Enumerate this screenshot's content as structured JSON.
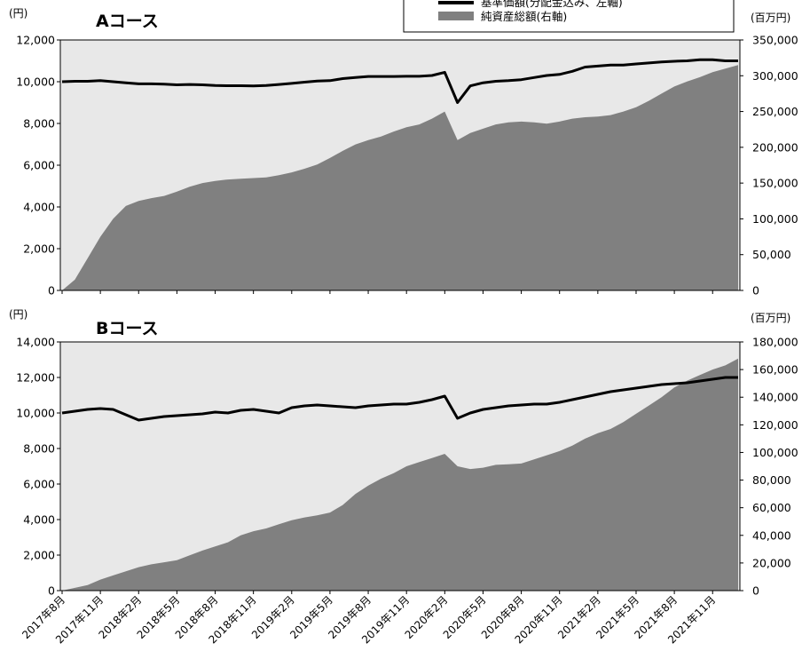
{
  "legend": {
    "nav_label": "基準価額(分配金込み、左軸)",
    "assets_label": "純資産総額(右軸)"
  },
  "colors": {
    "plot_background": "#e8e8e8",
    "assets_fill": "#808080",
    "nav_line": "#000000"
  },
  "x_ticks": [
    "2017年8月",
    "2017年11月",
    "2018年2月",
    "2018年5月",
    "2018年8月",
    "2018年11月",
    "2019年2月",
    "2019年5月",
    "2019年8月",
    "2019年11月",
    "2020年2月",
    "2020年5月",
    "2020年8月",
    "2020年11月",
    "2021年2月",
    "2021年5月",
    "2021年8月",
    "2021年11月"
  ],
  "chart_data": [
    {
      "type": "line+area",
      "title": "Aコース",
      "left_unit": "(円)",
      "right_unit": "(百万円)",
      "ylim_left": [
        0,
        12000
      ],
      "ylim_right": [
        0,
        350000
      ],
      "left_ticks": [
        "12,000",
        "10,000",
        "8,000",
        "6,000",
        "4,000",
        "2,000",
        "0"
      ],
      "right_ticks": [
        "350,000",
        "300,000",
        "250,000",
        "200,000",
        "150,000",
        "100,000",
        "50,000",
        "0"
      ],
      "x": [
        "2017-08",
        "2017-09",
        "2017-10",
        "2017-11",
        "2017-12",
        "2018-01",
        "2018-02",
        "2018-03",
        "2018-04",
        "2018-05",
        "2018-06",
        "2018-07",
        "2018-08",
        "2018-09",
        "2018-10",
        "2018-11",
        "2018-12",
        "2019-01",
        "2019-02",
        "2019-03",
        "2019-04",
        "2019-05",
        "2019-06",
        "2019-07",
        "2019-08",
        "2019-09",
        "2019-10",
        "2019-11",
        "2019-12",
        "2020-01",
        "2020-02",
        "2020-03",
        "2020-04",
        "2020-05",
        "2020-06",
        "2020-07",
        "2020-08",
        "2020-09",
        "2020-10",
        "2020-11",
        "2020-12",
        "2021-01",
        "2021-02",
        "2021-03",
        "2021-04",
        "2021-05",
        "2021-06",
        "2021-07",
        "2021-08",
        "2021-09",
        "2021-10",
        "2021-11",
        "2021-12",
        "2022-01"
      ],
      "series": [
        {
          "name": "基準価額(分配金込み、左軸)",
          "axis": "left",
          "values": [
            10000,
            10020,
            10020,
            10050,
            10000,
            9950,
            9900,
            9900,
            9880,
            9850,
            9870,
            9850,
            9820,
            9810,
            9810,
            9800,
            9820,
            9870,
            9920,
            9980,
            10030,
            10050,
            10150,
            10200,
            10250,
            10250,
            10250,
            10260,
            10260,
            10300,
            10450,
            9000,
            9800,
            9950,
            10020,
            10050,
            10100,
            10200,
            10300,
            10350,
            10500,
            10700,
            10750,
            10800,
            10800,
            10850,
            10900,
            10950,
            10980,
            11000,
            11050,
            11050,
            11000,
            11000
          ]
        },
        {
          "name": "純資産総額(右軸)",
          "axis": "right",
          "values": [
            0,
            15000,
            45000,
            75000,
            100000,
            118000,
            125000,
            129000,
            132000,
            138000,
            145000,
            150000,
            153000,
            155000,
            156000,
            157000,
            158000,
            161000,
            165000,
            170000,
            176000,
            185000,
            195000,
            204000,
            210000,
            215000,
            222000,
            228000,
            232000,
            240000,
            250000,
            210000,
            220000,
            226000,
            232000,
            235000,
            236000,
            235000,
            233000,
            236000,
            240000,
            242000,
            243000,
            245000,
            250000,
            256000,
            265000,
            275000,
            285000,
            292000,
            298000,
            305000,
            310000,
            315000
          ]
        }
      ]
    },
    {
      "type": "line+area",
      "title": "Bコース",
      "left_unit": "(円)",
      "right_unit": "(百万円)",
      "ylim_left": [
        0,
        14000
      ],
      "ylim_right": [
        0,
        180000
      ],
      "left_ticks": [
        "14,000",
        "12,000",
        "10,000",
        "8,000",
        "6,000",
        "4,000",
        "2,000",
        "0"
      ],
      "right_ticks": [
        "180,000",
        "160,000",
        "140,000",
        "120,000",
        "100,000",
        "80,000",
        "60,000",
        "40,000",
        "20,000",
        "0"
      ],
      "x": [
        "2017-08",
        "2017-09",
        "2017-10",
        "2017-11",
        "2017-12",
        "2018-01",
        "2018-02",
        "2018-03",
        "2018-04",
        "2018-05",
        "2018-06",
        "2018-07",
        "2018-08",
        "2018-09",
        "2018-10",
        "2018-11",
        "2018-12",
        "2019-01",
        "2019-02",
        "2019-03",
        "2019-04",
        "2019-05",
        "2019-06",
        "2019-07",
        "2019-08",
        "2019-09",
        "2019-10",
        "2019-11",
        "2019-12",
        "2020-01",
        "2020-02",
        "2020-03",
        "2020-04",
        "2020-05",
        "2020-06",
        "2020-07",
        "2020-08",
        "2020-09",
        "2020-10",
        "2020-11",
        "2020-12",
        "2021-01",
        "2021-02",
        "2021-03",
        "2021-04",
        "2021-05",
        "2021-06",
        "2021-07",
        "2021-08",
        "2021-09",
        "2021-10",
        "2021-11",
        "2021-12",
        "2022-01"
      ],
      "series": [
        {
          "name": "基準価額(分配金込み、左軸)",
          "axis": "left",
          "values": [
            10000,
            10100,
            10200,
            10250,
            10200,
            9900,
            9600,
            9700,
            9800,
            9850,
            9900,
            9950,
            10050,
            10000,
            10150,
            10200,
            10100,
            10000,
            10300,
            10400,
            10450,
            10400,
            10350,
            10300,
            10400,
            10450,
            10500,
            10500,
            10600,
            10750,
            10950,
            9700,
            10000,
            10200,
            10300,
            10400,
            10450,
            10500,
            10500,
            10600,
            10750,
            10900,
            11050,
            11200,
            11300,
            11400,
            11500,
            11600,
            11650,
            11700,
            11800,
            11900,
            12000,
            12000
          ]
        },
        {
          "name": "純資産総額(右軸)",
          "axis": "right",
          "values": [
            0,
            2000,
            4000,
            8000,
            11000,
            14000,
            17000,
            19000,
            20500,
            22000,
            25500,
            29000,
            32000,
            35000,
            40000,
            43000,
            45000,
            48000,
            51000,
            53000,
            54500,
            56500,
            62000,
            70000,
            76000,
            81000,
            85000,
            90000,
            93000,
            96000,
            99000,
            90000,
            88000,
            89000,
            91000,
            91500,
            92000,
            95000,
            98000,
            101000,
            105000,
            110000,
            114000,
            117000,
            122000,
            128000,
            134000,
            140000,
            147000,
            152000,
            156000,
            160000,
            163000,
            168000
          ]
        }
      ]
    }
  ]
}
